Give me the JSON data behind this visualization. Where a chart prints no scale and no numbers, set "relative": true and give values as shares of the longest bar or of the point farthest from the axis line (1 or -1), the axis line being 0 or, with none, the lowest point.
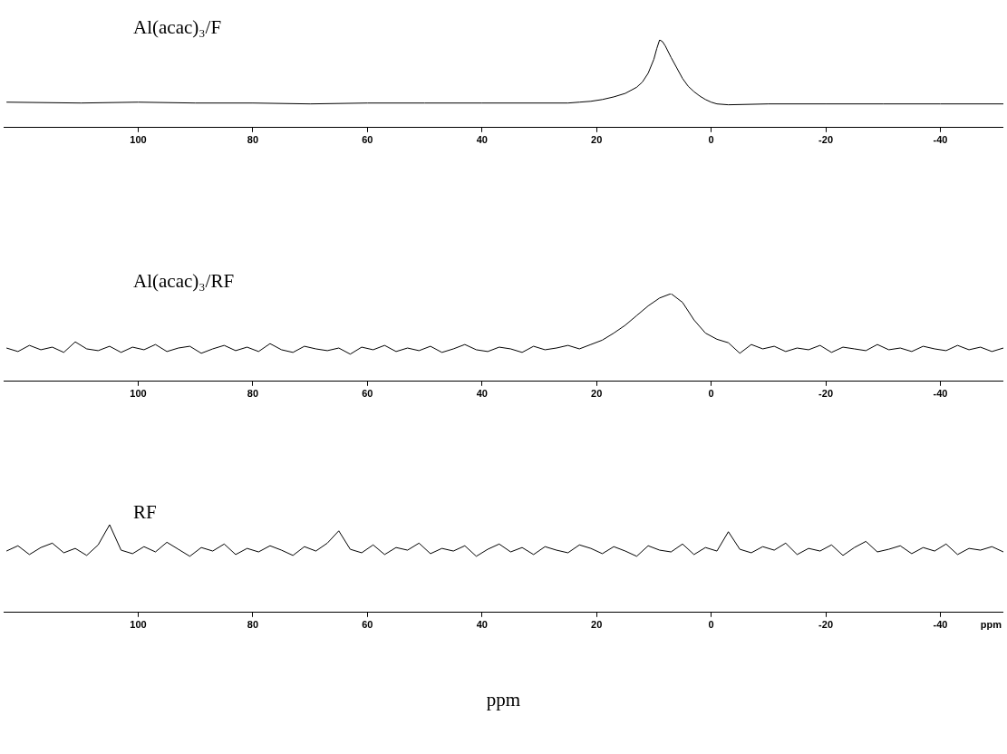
{
  "chart_data": [
    {
      "type": "line",
      "title": "Al(acac)₃/F",
      "relative": true,
      "xlim": [
        123.5,
        -51
      ],
      "xticks": [
        100,
        80,
        60,
        40,
        20,
        0,
        -20,
        -40
      ],
      "grid": false,
      "marker": "none",
      "line_style": "solid",
      "series": [
        {
          "color": "#000000",
          "x": [
            123,
            110,
            100,
            90,
            80,
            70,
            60,
            50,
            40,
            30,
            25,
            23,
            21,
            19,
            17,
            15,
            13,
            12,
            11,
            10,
            9.5,
            9,
            8.5,
            8,
            7,
            6,
            5,
            4,
            3,
            2,
            1,
            0,
            -1,
            -3,
            -10,
            -20,
            -30,
            -40,
            -51
          ],
          "values": [
            0.29,
            0.28,
            0.29,
            0.28,
            0.28,
            0.27,
            0.28,
            0.28,
            0.28,
            0.28,
            0.28,
            0.29,
            0.3,
            0.32,
            0.35,
            0.39,
            0.46,
            0.52,
            0.62,
            0.78,
            0.9,
            1.0,
            0.98,
            0.93,
            0.8,
            0.68,
            0.56,
            0.47,
            0.41,
            0.36,
            0.32,
            0.29,
            0.27,
            0.26,
            0.27,
            0.27,
            0.27,
            0.27,
            0.27
          ]
        }
      ]
    },
    {
      "type": "line",
      "title": "Al(acac)₃/RF",
      "relative": true,
      "xlim": [
        123.5,
        -51
      ],
      "xticks": [
        100,
        80,
        60,
        40,
        20,
        0,
        -20,
        -40
      ],
      "grid": false,
      "marker": "none",
      "line_style": "solid",
      "series": [
        {
          "color": "#000000",
          "x": [
            123,
            121,
            119,
            117,
            115,
            113,
            111,
            109,
            107,
            105,
            103,
            101,
            99,
            97,
            95,
            93,
            91,
            89,
            87,
            85,
            83,
            81,
            79,
            77,
            75,
            73,
            71,
            69,
            67,
            65,
            63,
            61,
            59,
            57,
            55,
            53,
            51,
            49,
            47,
            45,
            43,
            41,
            39,
            37,
            35,
            33,
            31,
            29,
            27,
            25,
            23,
            21,
            19,
            17,
            15,
            13,
            11,
            9,
            7,
            5,
            3,
            1,
            -1,
            -3,
            -5,
            -7,
            -9,
            -11,
            -13,
            -15,
            -17,
            -19,
            -21,
            -23,
            -25,
            -27,
            -29,
            -31,
            -33,
            -35,
            -37,
            -39,
            -41,
            -43,
            -45,
            -47,
            -49,
            -51
          ],
          "values": [
            0.38,
            0.34,
            0.41,
            0.36,
            0.39,
            0.33,
            0.45,
            0.37,
            0.35,
            0.4,
            0.33,
            0.39,
            0.36,
            0.42,
            0.34,
            0.38,
            0.4,
            0.32,
            0.37,
            0.41,
            0.35,
            0.39,
            0.34,
            0.43,
            0.36,
            0.33,
            0.4,
            0.37,
            0.35,
            0.38,
            0.31,
            0.39,
            0.36,
            0.41,
            0.34,
            0.38,
            0.35,
            0.4,
            0.33,
            0.37,
            0.42,
            0.36,
            0.34,
            0.39,
            0.37,
            0.33,
            0.4,
            0.36,
            0.38,
            0.41,
            0.37,
            0.42,
            0.47,
            0.55,
            0.64,
            0.75,
            0.86,
            0.95,
            1.0,
            0.9,
            0.7,
            0.55,
            0.48,
            0.44,
            0.32,
            0.42,
            0.37,
            0.4,
            0.34,
            0.38,
            0.36,
            0.41,
            0.33,
            0.39,
            0.37,
            0.35,
            0.42,
            0.36,
            0.38,
            0.34,
            0.4,
            0.37,
            0.35,
            0.41,
            0.36,
            0.39,
            0.34,
            0.38
          ]
        }
      ]
    },
    {
      "type": "line",
      "title": "RF",
      "relative": true,
      "xlim": [
        123.5,
        -51
      ],
      "xticks": [
        100,
        80,
        60,
        40,
        20,
        0,
        -20,
        -40
      ],
      "grid": false,
      "marker": "none",
      "line_style": "solid",
      "xlabel": "ppm",
      "annotations": [
        "ppm"
      ],
      "series": [
        {
          "color": "#000000",
          "x": [
            123,
            121,
            119,
            117,
            115,
            113,
            111,
            109,
            107,
            105,
            103,
            101,
            99,
            97,
            95,
            93,
            91,
            89,
            87,
            85,
            83,
            81,
            79,
            77,
            75,
            73,
            71,
            69,
            67,
            65,
            63,
            61,
            59,
            57,
            55,
            53,
            51,
            49,
            47,
            45,
            43,
            41,
            39,
            37,
            35,
            33,
            31,
            29,
            27,
            25,
            23,
            21,
            19,
            17,
            15,
            13,
            11,
            9,
            7,
            5,
            3,
            1,
            -1,
            -3,
            -5,
            -7,
            -9,
            -11,
            -13,
            -15,
            -17,
            -19,
            -21,
            -23,
            -25,
            -27,
            -29,
            -31,
            -33,
            -35,
            -37,
            -39,
            -41,
            -43,
            -45,
            -47,
            -49,
            -51
          ],
          "values": [
            0.7,
            0.76,
            0.66,
            0.74,
            0.79,
            0.68,
            0.73,
            0.65,
            0.77,
            1.0,
            0.71,
            0.67,
            0.75,
            0.69,
            0.8,
            0.72,
            0.64,
            0.74,
            0.7,
            0.78,
            0.66,
            0.73,
            0.69,
            0.76,
            0.71,
            0.65,
            0.75,
            0.7,
            0.79,
            0.93,
            0.72,
            0.68,
            0.77,
            0.66,
            0.74,
            0.71,
            0.79,
            0.67,
            0.73,
            0.7,
            0.76,
            0.64,
            0.72,
            0.78,
            0.69,
            0.74,
            0.66,
            0.75,
            0.71,
            0.68,
            0.77,
            0.73,
            0.67,
            0.75,
            0.7,
            0.64,
            0.76,
            0.71,
            0.69,
            0.78,
            0.66,
            0.74,
            0.7,
            0.92,
            0.72,
            0.68,
            0.75,
            0.71,
            0.79,
            0.66,
            0.73,
            0.7,
            0.77,
            0.65,
            0.74,
            0.81,
            0.69,
            0.72,
            0.76,
            0.67,
            0.74,
            0.7,
            0.78,
            0.66,
            0.73,
            0.71,
            0.75,
            0.69
          ]
        }
      ]
    }
  ]
}
